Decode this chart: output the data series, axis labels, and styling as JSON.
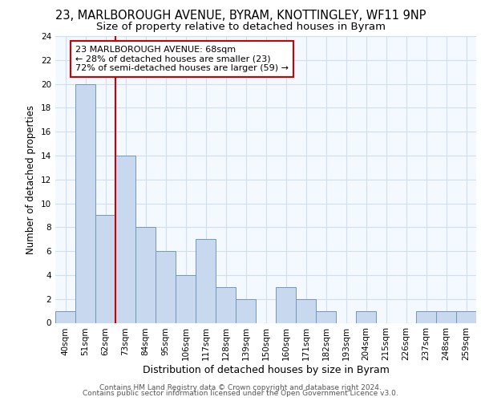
{
  "title_line1": "23, MARLBOROUGH AVENUE, BYRAM, KNOTTINGLEY, WF11 9NP",
  "title_line2": "Size of property relative to detached houses in Byram",
  "xlabel": "Distribution of detached houses by size in Byram",
  "ylabel": "Number of detached properties",
  "categories": [
    "40sqm",
    "51sqm",
    "62sqm",
    "73sqm",
    "84sqm",
    "95sqm",
    "106sqm",
    "117sqm",
    "128sqm",
    "139sqm",
    "150sqm",
    "160sqm",
    "171sqm",
    "182sqm",
    "193sqm",
    "204sqm",
    "215sqm",
    "226sqm",
    "237sqm",
    "248sqm",
    "259sqm"
  ],
  "values": [
    1,
    20,
    9,
    14,
    8,
    6,
    4,
    7,
    3,
    2,
    0,
    3,
    2,
    1,
    0,
    1,
    0,
    0,
    1,
    1,
    1
  ],
  "bar_color": "#c8d8ee",
  "bar_edge_color": "#7098bc",
  "red_line_index": 2,
  "red_line_color": "#cc0000",
  "annotation_text": "23 MARLBOROUGH AVENUE: 68sqm\n← 28% of detached houses are smaller (23)\n72% of semi-detached houses are larger (59) →",
  "annotation_box_edge": "#cc0000",
  "ylim": [
    0,
    24
  ],
  "yticks": [
    0,
    2,
    4,
    6,
    8,
    10,
    12,
    14,
    16,
    18,
    20,
    22,
    24
  ],
  "grid_color": "#d0dff0",
  "background_color": "#f4f8ff",
  "footer_line1": "Contains HM Land Registry data © Crown copyright and database right 2024.",
  "footer_line2": "Contains public sector information licensed under the Open Government Licence v3.0.",
  "title_fontsize": 10.5,
  "subtitle_fontsize": 9.5,
  "xlabel_fontsize": 9,
  "ylabel_fontsize": 8.5,
  "tick_fontsize": 7.5,
  "annotation_fontsize": 8,
  "footer_fontsize": 6.5
}
